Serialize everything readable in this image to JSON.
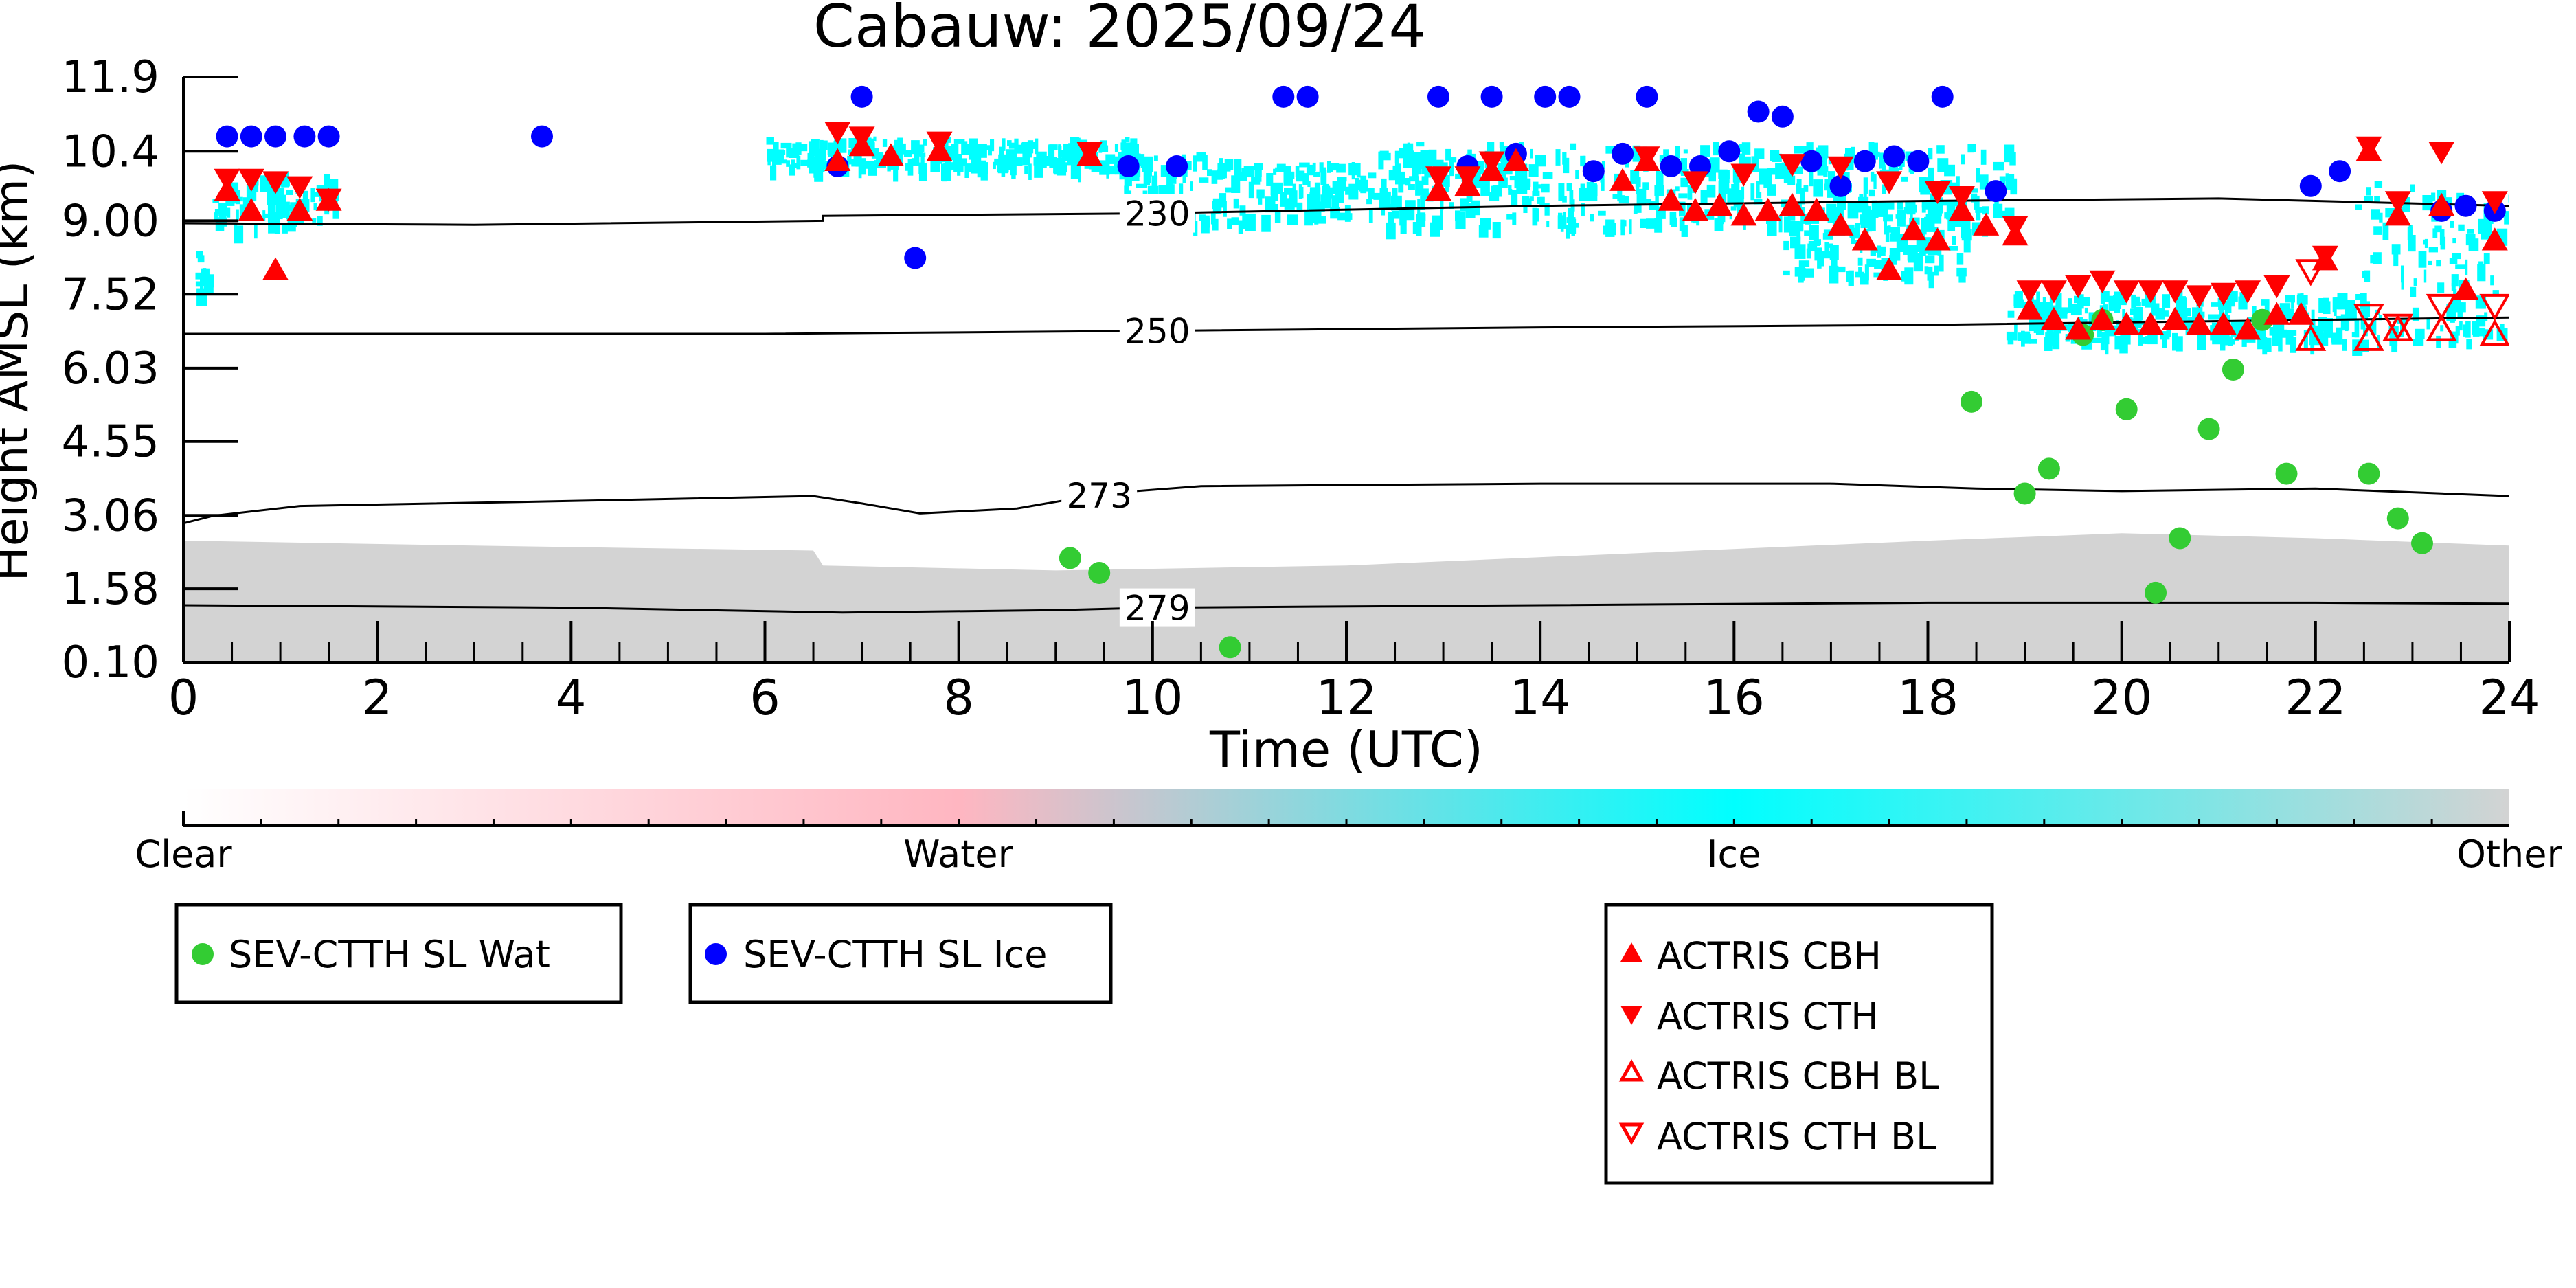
{
  "chart_data": {
    "type": "scatter",
    "title": "Cabauw: 2025/09/24",
    "xlabel": "Time (UTC)",
    "ylabel": "Height AMSL (km)",
    "xlim": [
      0,
      24
    ],
    "ylim": [
      0.1,
      11.9
    ],
    "x_ticks": [
      "0",
      "2",
      "4",
      "6",
      "8",
      "10",
      "12",
      "14",
      "16",
      "18",
      "20",
      "22",
      "24"
    ],
    "y_ticks": [
      "0.10",
      "1.58",
      "3.06",
      "4.55",
      "6.03",
      "7.52",
      "9.00",
      "10.4",
      "11.9"
    ],
    "colorbar": {
      "labels": [
        "Clear",
        "Water",
        "Ice",
        "Other"
      ],
      "colors": [
        "#ffffff",
        "#ffb6c1",
        "#00ffff",
        "#d3d3d3"
      ]
    },
    "contours": [
      {
        "label": "230",
        "points": [
          [
            0,
            8.95
          ],
          [
            3,
            8.92
          ],
          [
            6.6,
            9.0
          ],
          [
            6.6,
            9.1
          ],
          [
            10,
            9.15
          ],
          [
            14,
            9.3
          ],
          [
            18,
            9.4
          ],
          [
            21,
            9.45
          ],
          [
            24,
            9.3
          ]
        ]
      },
      {
        "label": "250",
        "points": [
          [
            0,
            6.72
          ],
          [
            6,
            6.72
          ],
          [
            10,
            6.78
          ],
          [
            14,
            6.85
          ],
          [
            18,
            6.9
          ],
          [
            22,
            7.0
          ],
          [
            24,
            7.05
          ]
        ]
      },
      {
        "label": "273",
        "points": [
          [
            0,
            2.9
          ],
          [
            0.3,
            3.05
          ],
          [
            1.2,
            3.25
          ],
          [
            4,
            3.35
          ],
          [
            6.5,
            3.45
          ],
          [
            7,
            3.3
          ],
          [
            7.6,
            3.1
          ],
          [
            8.6,
            3.2
          ],
          [
            9.5,
            3.5
          ],
          [
            10.5,
            3.65
          ],
          [
            14,
            3.7
          ],
          [
            17,
            3.7
          ],
          [
            18.5,
            3.6
          ],
          [
            20,
            3.55
          ],
          [
            22,
            3.6
          ],
          [
            24,
            3.45
          ]
        ]
      },
      {
        "label": "279",
        "points": [
          [
            0,
            1.25
          ],
          [
            4,
            1.2
          ],
          [
            6.8,
            1.1
          ],
          [
            9,
            1.15
          ],
          [
            10,
            1.2
          ],
          [
            14,
            1.25
          ],
          [
            18,
            1.3
          ],
          [
            22,
            1.3
          ],
          [
            24,
            1.28
          ]
        ]
      }
    ],
    "series": [
      {
        "name": "SEV-CTTH SL Wat",
        "marker": "circle",
        "color": "#33cc33",
        "points": [
          [
            9.15,
            2.2
          ],
          [
            9.45,
            1.9
          ],
          [
            10.8,
            0.4
          ],
          [
            18.45,
            5.35
          ],
          [
            19.0,
            3.5
          ],
          [
            19.25,
            4.0
          ],
          [
            19.6,
            6.7
          ],
          [
            19.8,
            7.0
          ],
          [
            20.05,
            5.2
          ],
          [
            20.35,
            1.5
          ],
          [
            20.6,
            2.6
          ],
          [
            20.9,
            4.8
          ],
          [
            21.15,
            6.0
          ],
          [
            21.45,
            7.0
          ],
          [
            21.7,
            3.9
          ],
          [
            22.55,
            3.9
          ],
          [
            22.85,
            3.0
          ],
          [
            23.1,
            2.5
          ]
        ]
      },
      {
        "name": "SEV-CTTH SL Ice",
        "marker": "circle",
        "color": "#0000ff",
        "points": [
          [
            0.45,
            10.7
          ],
          [
            0.7,
            10.7
          ],
          [
            0.95,
            10.7
          ],
          [
            1.25,
            10.7
          ],
          [
            1.5,
            10.7
          ],
          [
            3.7,
            10.7
          ],
          [
            6.75,
            10.1
          ],
          [
            7.0,
            11.5
          ],
          [
            7.55,
            8.25
          ],
          [
            9.75,
            10.1
          ],
          [
            10.25,
            10.1
          ],
          [
            11.35,
            11.5
          ],
          [
            11.6,
            11.5
          ],
          [
            12.95,
            11.5
          ],
          [
            13.25,
            10.1
          ],
          [
            13.5,
            11.5
          ],
          [
            13.75,
            10.35
          ],
          [
            14.05,
            11.5
          ],
          [
            14.3,
            11.5
          ],
          [
            14.55,
            10.0
          ],
          [
            14.85,
            10.35
          ],
          [
            15.1,
            11.5
          ],
          [
            15.35,
            10.1
          ],
          [
            15.65,
            10.1
          ],
          [
            15.95,
            10.4
          ],
          [
            16.25,
            11.2
          ],
          [
            16.5,
            11.1
          ],
          [
            16.8,
            10.2
          ],
          [
            17.1,
            9.7
          ],
          [
            17.35,
            10.2
          ],
          [
            17.65,
            10.3
          ],
          [
            17.9,
            10.2
          ],
          [
            18.15,
            11.5
          ],
          [
            18.7,
            9.6
          ],
          [
            21.95,
            9.7
          ],
          [
            22.25,
            10.0
          ],
          [
            23.3,
            9.2
          ],
          [
            23.55,
            9.3
          ],
          [
            23.85,
            9.2
          ]
        ]
      },
      {
        "name": "ACTRIS CBH",
        "marker": "triangle-up",
        "color": "#ff0000",
        "filled": true,
        "points": [
          [
            0.45,
            9.6
          ],
          [
            0.7,
            9.2
          ],
          [
            0.95,
            8.0
          ],
          [
            1.2,
            9.2
          ],
          [
            1.5,
            9.4
          ],
          [
            6.75,
            10.2
          ],
          [
            7.0,
            10.5
          ],
          [
            7.3,
            10.3
          ],
          [
            7.8,
            10.4
          ],
          [
            9.35,
            10.3
          ],
          [
            12.95,
            9.6
          ],
          [
            13.25,
            9.7
          ],
          [
            13.5,
            10.0
          ],
          [
            13.75,
            10.2
          ],
          [
            14.85,
            9.8
          ],
          [
            15.1,
            10.2
          ],
          [
            15.35,
            9.4
          ],
          [
            15.6,
            9.2
          ],
          [
            15.85,
            9.3
          ],
          [
            16.1,
            9.1
          ],
          [
            16.35,
            9.2
          ],
          [
            16.6,
            9.3
          ],
          [
            16.85,
            9.2
          ],
          [
            17.1,
            8.9
          ],
          [
            17.35,
            8.6
          ],
          [
            17.6,
            8.0
          ],
          [
            17.85,
            8.8
          ],
          [
            18.1,
            8.6
          ],
          [
            18.35,
            9.2
          ],
          [
            18.6,
            8.9
          ],
          [
            18.9,
            8.7
          ],
          [
            19.05,
            7.2
          ],
          [
            19.3,
            7.0
          ],
          [
            19.55,
            6.8
          ],
          [
            19.8,
            7.0
          ],
          [
            20.05,
            6.9
          ],
          [
            20.3,
            6.9
          ],
          [
            20.55,
            7.0
          ],
          [
            20.8,
            6.9
          ],
          [
            21.05,
            6.9
          ],
          [
            21.3,
            6.8
          ],
          [
            21.6,
            7.1
          ],
          [
            21.85,
            7.1
          ],
          [
            22.1,
            8.2
          ],
          [
            22.55,
            10.4
          ],
          [
            22.85,
            9.1
          ],
          [
            23.3,
            9.3
          ],
          [
            23.55,
            7.6
          ],
          [
            23.85,
            8.6
          ]
        ]
      },
      {
        "name": "ACTRIS CTH",
        "marker": "triangle-down",
        "color": "#ff0000",
        "filled": true,
        "points": [
          [
            0.45,
            9.85
          ],
          [
            0.7,
            9.85
          ],
          [
            0.95,
            9.8
          ],
          [
            1.2,
            9.7
          ],
          [
            1.5,
            9.45
          ],
          [
            6.75,
            10.8
          ],
          [
            7.0,
            10.7
          ],
          [
            7.8,
            10.6
          ],
          [
            9.35,
            10.4
          ],
          [
            12.95,
            9.9
          ],
          [
            13.25,
            9.9
          ],
          [
            13.5,
            10.2
          ],
          [
            15.1,
            10.3
          ],
          [
            15.6,
            9.8
          ],
          [
            16.1,
            9.95
          ],
          [
            16.6,
            10.15
          ],
          [
            17.1,
            10.1
          ],
          [
            17.6,
            9.8
          ],
          [
            18.1,
            9.6
          ],
          [
            18.35,
            9.5
          ],
          [
            18.9,
            8.9
          ],
          [
            19.05,
            7.6
          ],
          [
            19.3,
            7.6
          ],
          [
            19.55,
            7.7
          ],
          [
            19.8,
            7.8
          ],
          [
            20.05,
            7.6
          ],
          [
            20.3,
            7.6
          ],
          [
            20.55,
            7.6
          ],
          [
            20.8,
            7.5
          ],
          [
            21.05,
            7.55
          ],
          [
            21.3,
            7.6
          ],
          [
            21.6,
            7.7
          ],
          [
            22.1,
            8.3
          ],
          [
            22.55,
            10.5
          ],
          [
            22.85,
            9.4
          ],
          [
            23.3,
            10.4
          ],
          [
            23.85,
            9.4
          ]
        ]
      },
      {
        "name": "ACTRIS CBH BL",
        "marker": "triangle-up",
        "color": "#ff0000",
        "filled": false,
        "points": [
          [
            21.95,
            6.6
          ],
          [
            22.55,
            6.6
          ],
          [
            22.85,
            6.8
          ],
          [
            23.3,
            6.8
          ],
          [
            23.85,
            6.7
          ]
        ]
      },
      {
        "name": "ACTRIS CTH BL",
        "marker": "triangle-down",
        "color": "#ff0000",
        "filled": false,
        "points": [
          [
            21.95,
            8.0
          ],
          [
            22.55,
            7.1
          ],
          [
            22.85,
            6.9
          ],
          [
            23.3,
            7.3
          ],
          [
            23.85,
            7.3
          ]
        ]
      }
    ],
    "legend_groups": [
      [
        "SEV-CTTH SL Wat"
      ],
      [
        "SEV-CTTH SL Ice"
      ],
      [
        "ACTRIS CBH",
        "ACTRIS CTH",
        "ACTRIS CBH BL",
        "ACTRIS CTH BL"
      ]
    ],
    "legend_placement": "below"
  }
}
